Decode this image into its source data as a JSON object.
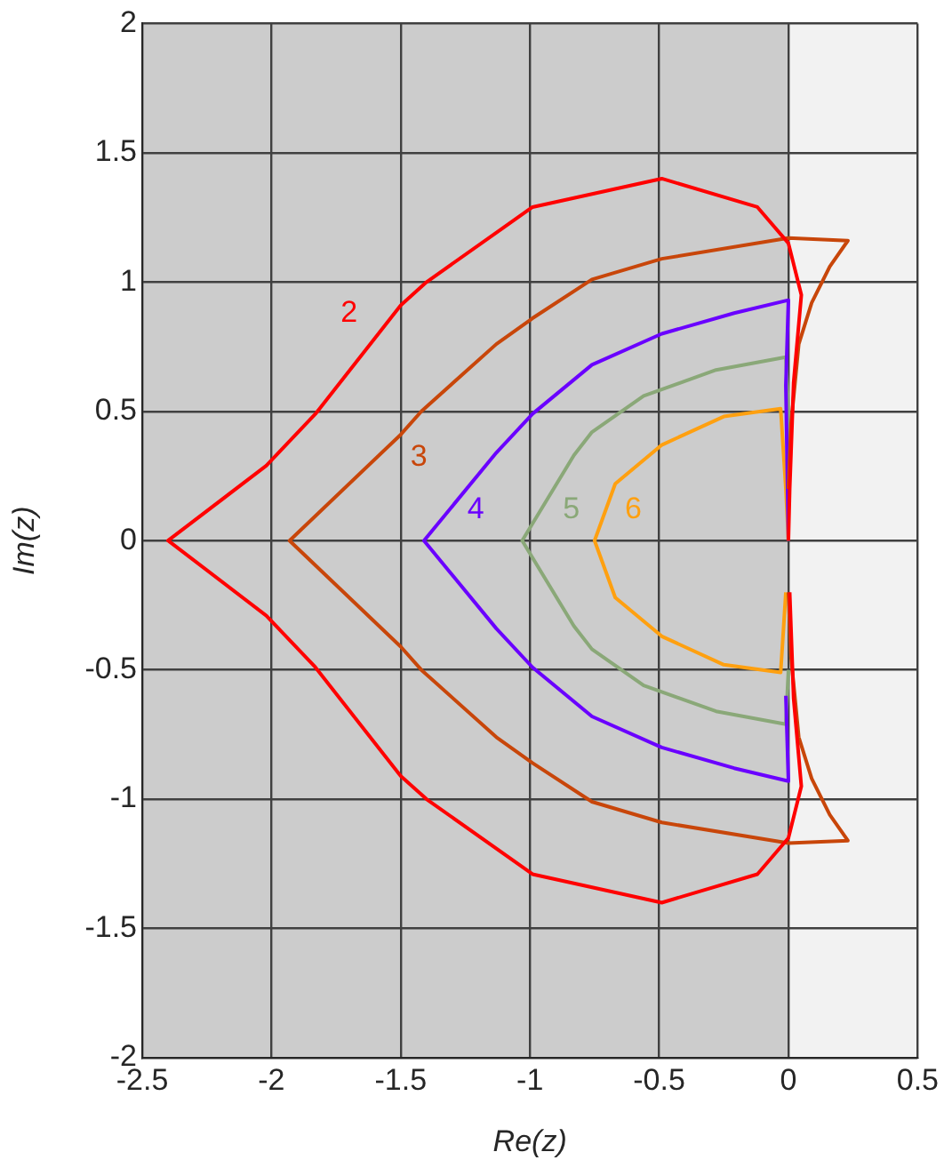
{
  "chart_data": {
    "type": "line",
    "xlabel": "Re(z)",
    "ylabel": "Im(z)",
    "xlim": [
      -2.5,
      0.5
    ],
    "ylim": [
      -2,
      2
    ],
    "xticks": [
      -2.5,
      -2,
      -1.5,
      -1,
      -0.5,
      0,
      0.5
    ],
    "yticks": [
      -2,
      -1.5,
      -1,
      -0.5,
      0,
      0.5,
      1,
      1.5,
      2
    ],
    "grid": true,
    "marker": "none",
    "line_style": "solid",
    "bands": [
      {
        "axis": "x",
        "from": -2.5,
        "to": 0,
        "color": "#cccccc"
      }
    ],
    "series": [
      {
        "name": "2",
        "color": "#ff0000",
        "x": [
          0,
          0.005,
          0.02,
          0.05,
          0,
          -0.12,
          -0.49,
          -0.99,
          -1.4,
          -1.5,
          -1.83,
          -2.02,
          -2.4,
          -2.02,
          -1.83,
          -1.5,
          -1.4,
          -0.99,
          -0.49,
          -0.12,
          0,
          0.05,
          0.02,
          0.005
        ],
        "values": [
          0,
          0.2,
          0.61,
          0.95,
          1.15,
          1.29,
          1.4,
          1.29,
          1.0,
          0.91,
          0.49,
          0.29,
          0,
          -0.29,
          -0.49,
          -0.91,
          -1.0,
          -1.29,
          -1.4,
          -1.29,
          -1.15,
          -0.95,
          -0.61,
          -0.2
        ]
      },
      {
        "name": "3",
        "color": "#c8460a",
        "x": [
          0,
          0.01,
          0.04,
          0.09,
          0.16,
          0.23,
          0,
          -0.49,
          -0.76,
          -0.99,
          -1.13,
          -1.42,
          -1.5,
          -1.93,
          -1.5,
          -1.42,
          -1.13,
          -0.99,
          -0.76,
          -0.49,
          0,
          0.23,
          0.16,
          0.09,
          0.04,
          0.01,
          0
        ],
        "values": [
          0.2,
          0.45,
          0.76,
          0.92,
          1.06,
          1.16,
          1.17,
          1.09,
          1.01,
          0.86,
          0.76,
          0.5,
          0.41,
          0,
          -0.41,
          -0.5,
          -0.76,
          -0.86,
          -1.01,
          -1.09,
          -1.17,
          -1.16,
          -1.06,
          -0.92,
          -0.76,
          -0.45,
          -0.2
        ]
      },
      {
        "name": "4",
        "color": "#6a00ff",
        "x": [
          0,
          -0.01,
          0,
          -0.21,
          -0.49,
          -0.76,
          -0.99,
          -1.13,
          -1.41,
          -1.13,
          -0.99,
          -0.76,
          -0.49,
          -0.21,
          0,
          -0.01
        ],
        "values": [
          0,
          0.6,
          0.93,
          0.88,
          0.8,
          0.68,
          0.49,
          0.34,
          0,
          -0.34,
          -0.49,
          -0.68,
          -0.8,
          -0.88,
          -0.93,
          -0.6
        ]
      },
      {
        "name": "5",
        "color": "#8aa878",
        "x": [
          0,
          0,
          -0.01,
          -0.28,
          -0.56,
          -0.76,
          -0.83,
          -1.03,
          -0.83,
          -0.76,
          -0.56,
          -0.28,
          -0.01,
          0
        ],
        "values": [
          0,
          0.5,
          0.71,
          0.66,
          0.56,
          0.42,
          0.33,
          0,
          -0.33,
          -0.42,
          -0.56,
          -0.66,
          -0.71,
          -0.5
        ]
      },
      {
        "name": "6",
        "color": "#ffa010",
        "x": [
          0,
          -0.01,
          -0.03,
          -0.25,
          -0.49,
          -0.67,
          -0.75,
          -0.67,
          -0.49,
          -0.25,
          -0.03,
          -0.01
        ],
        "values": [
          0,
          0.2,
          0.51,
          0.48,
          0.37,
          0.22,
          0,
          -0.22,
          -0.37,
          -0.48,
          -0.51,
          -0.2
        ]
      }
    ]
  }
}
